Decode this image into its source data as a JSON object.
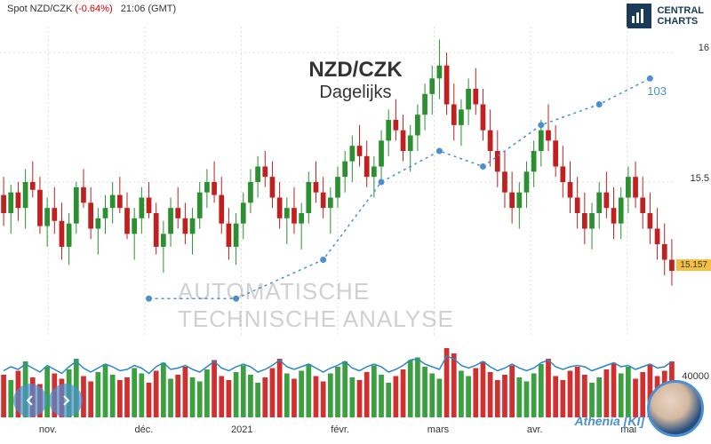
{
  "header": {
    "instrument": "Spot NZD/CZK",
    "change_pct": "(-0.64%)",
    "time": "21:06 (GMT)"
  },
  "logo": {
    "line1": "CENTRAL",
    "line2": "CHARTS"
  },
  "title": {
    "main": "NZD/CZK",
    "sub": "Dagelijks"
  },
  "watermark": "AUTOMATISCHE  TECHNISCHE ANALYSE",
  "indicator_label": "103",
  "avatar_label": "Athenia [KI]",
  "price_tag": "15.157",
  "colors": {
    "up": "#2a9030",
    "down": "#c02020",
    "vol_up": "#3aa040",
    "vol_down": "#d03030",
    "overlay_line": "#2a88c8",
    "indicator_line": "#4a90d0",
    "price_tag_bg": "#f5c040",
    "grid": "#dddddd"
  },
  "yaxis": {
    "min": 14.9,
    "max": 16.1,
    "ticks": [
      {
        "v": 16,
        "label": "16"
      },
      {
        "v": 15.5,
        "label": "15.5"
      }
    ]
  },
  "xaxis": {
    "labels": [
      "nov.",
      "déc.",
      "2021",
      "févr.",
      "mars",
      "avr.",
      "mai"
    ]
  },
  "candles": [
    {
      "o": 15.45,
      "h": 15.52,
      "l": 15.33,
      "c": 15.38
    },
    {
      "o": 15.38,
      "h": 15.49,
      "l": 15.3,
      "c": 15.46
    },
    {
      "o": 15.46,
      "h": 15.5,
      "l": 15.35,
      "c": 15.4
    },
    {
      "o": 15.4,
      "h": 15.55,
      "l": 15.32,
      "c": 15.5
    },
    {
      "o": 15.5,
      "h": 15.58,
      "l": 15.44,
      "c": 15.47
    },
    {
      "o": 15.47,
      "h": 15.52,
      "l": 15.3,
      "c": 15.33
    },
    {
      "o": 15.33,
      "h": 15.44,
      "l": 15.25,
      "c": 15.4
    },
    {
      "o": 15.4,
      "h": 15.48,
      "l": 15.3,
      "c": 15.35
    },
    {
      "o": 15.35,
      "h": 15.42,
      "l": 15.2,
      "c": 15.25
    },
    {
      "o": 15.25,
      "h": 15.38,
      "l": 15.18,
      "c": 15.34
    },
    {
      "o": 15.34,
      "h": 15.5,
      "l": 15.3,
      "c": 15.48
    },
    {
      "o": 15.48,
      "h": 15.55,
      "l": 15.4,
      "c": 15.42
    },
    {
      "o": 15.42,
      "h": 15.48,
      "l": 15.28,
      "c": 15.32
    },
    {
      "o": 15.32,
      "h": 15.4,
      "l": 15.22,
      "c": 15.36
    },
    {
      "o": 15.36,
      "h": 15.45,
      "l": 15.3,
      "c": 15.4
    },
    {
      "o": 15.4,
      "h": 15.5,
      "l": 15.34,
      "c": 15.45
    },
    {
      "o": 15.45,
      "h": 15.52,
      "l": 15.38,
      "c": 15.4
    },
    {
      "o": 15.4,
      "h": 15.46,
      "l": 15.28,
      "c": 15.3
    },
    {
      "o": 15.3,
      "h": 15.4,
      "l": 15.2,
      "c": 15.36
    },
    {
      "o": 15.36,
      "h": 15.48,
      "l": 15.3,
      "c": 15.44
    },
    {
      "o": 15.44,
      "h": 15.5,
      "l": 15.36,
      "c": 15.38
    },
    {
      "o": 15.38,
      "h": 15.42,
      "l": 15.22,
      "c": 15.25
    },
    {
      "o": 15.25,
      "h": 15.35,
      "l": 15.15,
      "c": 15.3
    },
    {
      "o": 15.3,
      "h": 15.44,
      "l": 15.25,
      "c": 15.4
    },
    {
      "o": 15.4,
      "h": 15.48,
      "l": 15.32,
      "c": 15.36
    },
    {
      "o": 15.36,
      "h": 15.42,
      "l": 15.26,
      "c": 15.3
    },
    {
      "o": 15.3,
      "h": 15.4,
      "l": 15.22,
      "c": 15.36
    },
    {
      "o": 15.36,
      "h": 15.5,
      "l": 15.32,
      "c": 15.46
    },
    {
      "o": 15.46,
      "h": 15.55,
      "l": 15.4,
      "c": 15.5
    },
    {
      "o": 15.5,
      "h": 15.58,
      "l": 15.42,
      "c": 15.45
    },
    {
      "o": 15.45,
      "h": 15.52,
      "l": 15.3,
      "c": 15.34
    },
    {
      "o": 15.34,
      "h": 15.4,
      "l": 15.2,
      "c": 15.25
    },
    {
      "o": 15.25,
      "h": 15.38,
      "l": 15.18,
      "c": 15.34
    },
    {
      "o": 15.34,
      "h": 15.46,
      "l": 15.28,
      "c": 15.42
    },
    {
      "o": 15.42,
      "h": 15.55,
      "l": 15.38,
      "c": 15.5
    },
    {
      "o": 15.5,
      "h": 15.6,
      "l": 15.44,
      "c": 15.56
    },
    {
      "o": 15.56,
      "h": 15.62,
      "l": 15.48,
      "c": 15.52
    },
    {
      "o": 15.52,
      "h": 15.58,
      "l": 15.4,
      "c": 15.44
    },
    {
      "o": 15.44,
      "h": 15.5,
      "l": 15.32,
      "c": 15.36
    },
    {
      "o": 15.36,
      "h": 15.44,
      "l": 15.26,
      "c": 15.4
    },
    {
      "o": 15.4,
      "h": 15.48,
      "l": 15.3,
      "c": 15.34
    },
    {
      "o": 15.34,
      "h": 15.42,
      "l": 15.24,
      "c": 15.38
    },
    {
      "o": 15.38,
      "h": 15.54,
      "l": 15.34,
      "c": 15.5
    },
    {
      "o": 15.5,
      "h": 15.58,
      "l": 15.42,
      "c": 15.46
    },
    {
      "o": 15.46,
      "h": 15.52,
      "l": 15.36,
      "c": 15.4
    },
    {
      "o": 15.4,
      "h": 15.48,
      "l": 15.3,
      "c": 15.44
    },
    {
      "o": 15.44,
      "h": 15.56,
      "l": 15.4,
      "c": 15.52
    },
    {
      "o": 15.52,
      "h": 15.62,
      "l": 15.46,
      "c": 15.58
    },
    {
      "o": 15.58,
      "h": 15.68,
      "l": 15.5,
      "c": 15.64
    },
    {
      "o": 15.64,
      "h": 15.72,
      "l": 15.56,
      "c": 15.6
    },
    {
      "o": 15.6,
      "h": 15.66,
      "l": 15.48,
      "c": 15.52
    },
    {
      "o": 15.52,
      "h": 15.6,
      "l": 15.44,
      "c": 15.56
    },
    {
      "o": 15.56,
      "h": 15.7,
      "l": 15.5,
      "c": 15.66
    },
    {
      "o": 15.66,
      "h": 15.78,
      "l": 15.6,
      "c": 15.74
    },
    {
      "o": 15.74,
      "h": 15.82,
      "l": 15.66,
      "c": 15.7
    },
    {
      "o": 15.7,
      "h": 15.76,
      "l": 15.58,
      "c": 15.62
    },
    {
      "o": 15.62,
      "h": 15.72,
      "l": 15.54,
      "c": 15.68
    },
    {
      "o": 15.68,
      "h": 15.8,
      "l": 15.62,
      "c": 15.76
    },
    {
      "o": 15.76,
      "h": 15.88,
      "l": 15.7,
      "c": 15.84
    },
    {
      "o": 15.84,
      "h": 15.95,
      "l": 15.76,
      "c": 15.9
    },
    {
      "o": 15.9,
      "h": 16.05,
      "l": 15.82,
      "c": 15.95
    },
    {
      "o": 15.95,
      "h": 16.0,
      "l": 15.76,
      "c": 15.8
    },
    {
      "o": 15.8,
      "h": 15.88,
      "l": 15.66,
      "c": 15.72
    },
    {
      "o": 15.72,
      "h": 15.82,
      "l": 15.64,
      "c": 15.78
    },
    {
      "o": 15.78,
      "h": 15.9,
      "l": 15.72,
      "c": 15.86
    },
    {
      "o": 15.86,
      "h": 15.94,
      "l": 15.76,
      "c": 15.8
    },
    {
      "o": 15.8,
      "h": 15.86,
      "l": 15.66,
      "c": 15.7
    },
    {
      "o": 15.7,
      "h": 15.78,
      "l": 15.56,
      "c": 15.62
    },
    {
      "o": 15.62,
      "h": 15.7,
      "l": 15.48,
      "c": 15.54
    },
    {
      "o": 15.54,
      "h": 15.62,
      "l": 15.4,
      "c": 15.46
    },
    {
      "o": 15.46,
      "h": 15.54,
      "l": 15.34,
      "c": 15.4
    },
    {
      "o": 15.4,
      "h": 15.5,
      "l": 15.32,
      "c": 15.46
    },
    {
      "o": 15.46,
      "h": 15.58,
      "l": 15.4,
      "c": 15.54
    },
    {
      "o": 15.54,
      "h": 15.66,
      "l": 15.48,
      "c": 15.62
    },
    {
      "o": 15.62,
      "h": 15.74,
      "l": 15.56,
      "c": 15.7
    },
    {
      "o": 15.7,
      "h": 15.8,
      "l": 15.62,
      "c": 15.66
    },
    {
      "o": 15.66,
      "h": 15.72,
      "l": 15.52,
      "c": 15.56
    },
    {
      "o": 15.56,
      "h": 15.64,
      "l": 15.44,
      "c": 15.5
    },
    {
      "o": 15.5,
      "h": 15.58,
      "l": 15.38,
      "c": 15.44
    },
    {
      "o": 15.44,
      "h": 15.52,
      "l": 15.32,
      "c": 15.38
    },
    {
      "o": 15.38,
      "h": 15.46,
      "l": 15.26,
      "c": 15.32
    },
    {
      "o": 15.32,
      "h": 15.42,
      "l": 15.24,
      "c": 15.38
    },
    {
      "o": 15.38,
      "h": 15.5,
      "l": 15.32,
      "c": 15.46
    },
    {
      "o": 15.46,
      "h": 15.54,
      "l": 15.36,
      "c": 15.4
    },
    {
      "o": 15.4,
      "h": 15.48,
      "l": 15.28,
      "c": 15.34
    },
    {
      "o": 15.34,
      "h": 15.48,
      "l": 15.28,
      "c": 15.44
    },
    {
      "o": 15.44,
      "h": 15.56,
      "l": 15.38,
      "c": 15.52
    },
    {
      "o": 15.52,
      "h": 15.58,
      "l": 15.4,
      "c": 15.44
    },
    {
      "o": 15.44,
      "h": 15.52,
      "l": 15.32,
      "c": 15.38
    },
    {
      "o": 15.38,
      "h": 15.46,
      "l": 15.26,
      "c": 15.32
    },
    {
      "o": 15.32,
      "h": 15.4,
      "l": 15.2,
      "c": 15.26
    },
    {
      "o": 15.26,
      "h": 15.34,
      "l": 15.14,
      "c": 15.2
    },
    {
      "o": 15.2,
      "h": 15.28,
      "l": 15.1,
      "c": 15.157
    }
  ],
  "volume": {
    "ylabel": "40000",
    "max": 60000,
    "bars": [
      32000,
      28000,
      35000,
      42000,
      30000,
      25000,
      38000,
      33000,
      29000,
      36000,
      44000,
      31000,
      27000,
      34000,
      40000,
      32000,
      28000,
      30000,
      37000,
      33000,
      26000,
      35000,
      41000,
      29000,
      32000,
      38000,
      30000,
      27000,
      36000,
      43000,
      31000,
      28000,
      34000,
      39000,
      32000,
      26000,
      30000,
      37000,
      44000,
      33000,
      29000,
      35000,
      40000,
      31000,
      27000,
      33000,
      38000,
      42000,
      30000,
      28000,
      34000,
      39000,
      32000,
      26000,
      31000,
      36000,
      43000,
      45000,
      38000,
      33000,
      29000,
      52000,
      48000,
      35000,
      31000,
      37000,
      42000,
      34000,
      28000,
      32000,
      39000,
      30000,
      27000,
      33000,
      40000,
      44000,
      31000,
      28000,
      35000,
      38000,
      32000,
      26000,
      30000,
      36000,
      41000,
      33000,
      38000,
      29000,
      34000,
      40000,
      31000,
      35000,
      42000
    ],
    "overlay": [
      35,
      38,
      36,
      40,
      37,
      34,
      39,
      36,
      33,
      38,
      42,
      37,
      34,
      37,
      40,
      38,
      35,
      36,
      39,
      37,
      33,
      38,
      41,
      36,
      37,
      39,
      36,
      34,
      38,
      42,
      37,
      35,
      38,
      40,
      38,
      34,
      36,
      39,
      43,
      38,
      36,
      38,
      40,
      37,
      34,
      37,
      39,
      42,
      37,
      35,
      38,
      40,
      38,
      34,
      36,
      39,
      43,
      44,
      40,
      38,
      36,
      46,
      44,
      39,
      37,
      39,
      42,
      38,
      35,
      37,
      40,
      37,
      35,
      37,
      41,
      43,
      38,
      36,
      38,
      39,
      38,
      35,
      37,
      39,
      41,
      38,
      39,
      36,
      38,
      40,
      37,
      38,
      42
    ]
  },
  "indicator_points": [
    {
      "i": 20,
      "v": 15.05
    },
    {
      "i": 32,
      "v": 15.05
    },
    {
      "i": 44,
      "v": 15.2
    },
    {
      "i": 52,
      "v": 15.5
    },
    {
      "i": 60,
      "v": 15.62
    },
    {
      "i": 66,
      "v": 15.56
    },
    {
      "i": 74,
      "v": 15.72
    },
    {
      "i": 82,
      "v": 15.8
    },
    {
      "i": 89,
      "v": 15.9
    }
  ]
}
